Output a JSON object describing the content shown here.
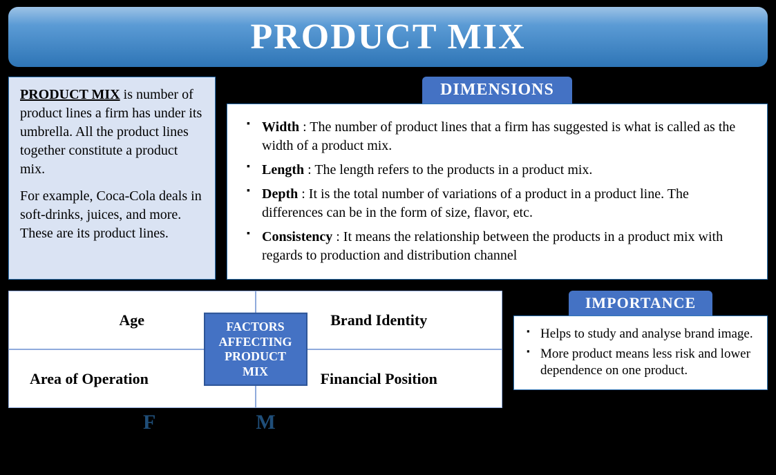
{
  "title": "PRODUCT MIX",
  "colors": {
    "page_bg": "#000000",
    "banner_grad_top": "#9dc3e6",
    "banner_grad_mid": "#5b9bd5",
    "banner_grad_bot": "#2e75b6",
    "banner_text": "#ffffff",
    "def_bg": "#dae3f3",
    "box_border": "#2e75b6",
    "grid_border": "#8faadc",
    "header_block_bg": "#4472c4",
    "header_block_border": "#2e5597",
    "white": "#ffffff",
    "body_text": "#000000",
    "fm_text": "#1f4e79"
  },
  "definition": {
    "title": "PRODUCT MIX",
    "para1": " is number of product lines a firm has under its umbrella. All the product lines together constitute a product mix.",
    "para2": "For example, Coca-Cola deals in soft-drinks, juices, and more. These are its product lines."
  },
  "dimensions": {
    "header": "DIMENSIONS",
    "items": [
      {
        "label": "Width",
        "text": " : The number of product lines that a firm has suggested is what is called as the width of a product mix."
      },
      {
        "label": "Length",
        "text": " : The length refers to the products in a product mix."
      },
      {
        "label": "Depth",
        "text": " : It is the total number of variations of a product in a product line. The differences can be in the form of size, flavor, etc."
      },
      {
        "label": "Consistency",
        "text": " : It means the relationship between the products in a product mix with regards to production and distribution channel"
      }
    ]
  },
  "factors": {
    "center": "FACTORS AFFECTING PRODUCT MIX",
    "tl": "Age",
    "tr": "Brand Identity",
    "bl": "Area of Operation",
    "br": "Financial Position",
    "letters": {
      "f": "F",
      "m": "M"
    }
  },
  "importance": {
    "header": "IMPORTANCE",
    "items": [
      "Helps to study and analyse brand image.",
      "More product means less risk and lower dependence on one product."
    ]
  }
}
